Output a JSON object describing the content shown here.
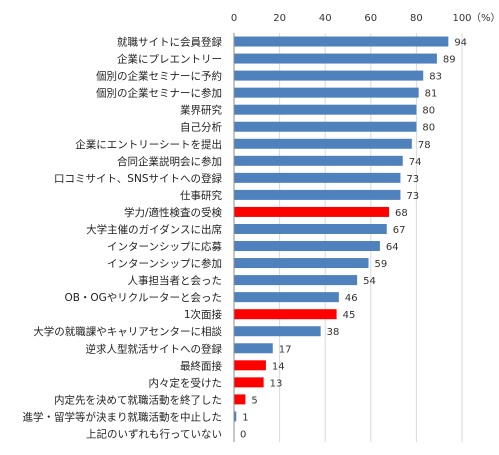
{
  "chart_data": {
    "type": "bar",
    "orientation": "horizontal",
    "unit_label": "（%）",
    "xlim": [
      0,
      100
    ],
    "x_ticks": [
      "0",
      "20",
      "40",
      "60",
      "80",
      "100"
    ],
    "grid": true,
    "colors": {
      "default": "#4f81bd",
      "highlight": "#ff0000"
    },
    "categories": [
      "就職サイトに会員登録",
      "企業にプレエントリー",
      "個別の企業セミナーに予約",
      "個別の企業セミナーに参加",
      "業界研究",
      "自己分析",
      "企業にエントリーシートを提出",
      "合同企業説明会に参加",
      "口コミサイト、SNSサイトへの登録",
      "仕事研究",
      "学力/適性検査の受検",
      "大学主催のガイダンスに出席",
      "インターンシップに応募",
      "インターンシップに参加",
      "人事担当者と会った",
      "OB・OGやリクルーターと会った",
      "1次面接",
      "大学の就職課やキャリアセンターに相談",
      "逆求人型就活サイトへの登録",
      "最終面接",
      "内々定を受けた",
      "内定先を決めて就職活動を終了した",
      "進学・留学等が決まり就職活動を中止した",
      "上記のいずれも行っていない"
    ],
    "values": [
      94,
      89,
      83,
      81,
      80,
      80,
      78,
      74,
      73,
      73,
      68,
      67,
      64,
      59,
      54,
      46,
      45,
      38,
      17,
      14,
      13,
      5,
      1,
      0
    ],
    "highlighted": [
      false,
      false,
      false,
      false,
      false,
      false,
      false,
      false,
      false,
      false,
      true,
      false,
      false,
      false,
      false,
      false,
      true,
      false,
      false,
      true,
      true,
      true,
      false,
      false
    ]
  }
}
